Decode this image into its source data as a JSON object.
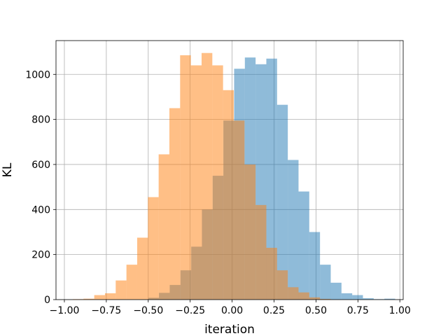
{
  "chart_data": {
    "type": "bar",
    "subtype": "histogram",
    "xlabel": "iteration",
    "ylabel": "KL",
    "xlim": [
      -1.05,
      1.02
    ],
    "ylim": [
      0,
      1150
    ],
    "x_ticks": [
      -1.0,
      -0.75,
      -0.5,
      -0.25,
      0.0,
      0.25,
      0.5,
      0.75,
      1.0
    ],
    "x_tick_labels": [
      "−1.00",
      "−0.75",
      "−0.50",
      "−0.25",
      "0.00",
      "0.25",
      "0.50",
      "0.75",
      "1.00"
    ],
    "y_ticks": [
      0,
      200,
      400,
      600,
      800,
      1000
    ],
    "y_tick_labels": [
      "0",
      "200",
      "400",
      "600",
      "800",
      "1000"
    ],
    "grid": true,
    "series": [
      {
        "color": "#1f77b4",
        "opacity": 0.5,
        "bin_edges": [
          -0.5,
          -0.436,
          -0.372,
          -0.308,
          -0.244,
          -0.18,
          -0.116,
          -0.052,
          0.012,
          0.076,
          0.14,
          0.204,
          0.268,
          0.332,
          0.396,
          0.46,
          0.524,
          0.588,
          0.652,
          0.716,
          0.78,
          0.844,
          0.908,
          0.972
        ],
        "counts": [
          8,
          30,
          65,
          130,
          235,
          400,
          550,
          795,
          1025,
          1075,
          1045,
          1070,
          865,
          620,
          480,
          300,
          155,
          75,
          28,
          20,
          6,
          2,
          4
        ]
      },
      {
        "color": "#ff7f0e",
        "opacity": 0.5,
        "bin_edges": [
          -0.95,
          -0.886,
          -0.822,
          -0.758,
          -0.694,
          -0.63,
          -0.566,
          -0.502,
          -0.438,
          -0.374,
          -0.31,
          -0.246,
          -0.182,
          -0.118,
          -0.054,
          0.01,
          0.074,
          0.14,
          0.204,
          0.268,
          0.332,
          0.396,
          0.46,
          0.524,
          0.588
        ],
        "counts": [
          2,
          4,
          20,
          28,
          85,
          155,
          275,
          455,
          645,
          850,
          1085,
          1040,
          1095,
          1040,
          930,
          795,
          600,
          420,
          230,
          130,
          55,
          32,
          10,
          3
        ]
      }
    ]
  }
}
